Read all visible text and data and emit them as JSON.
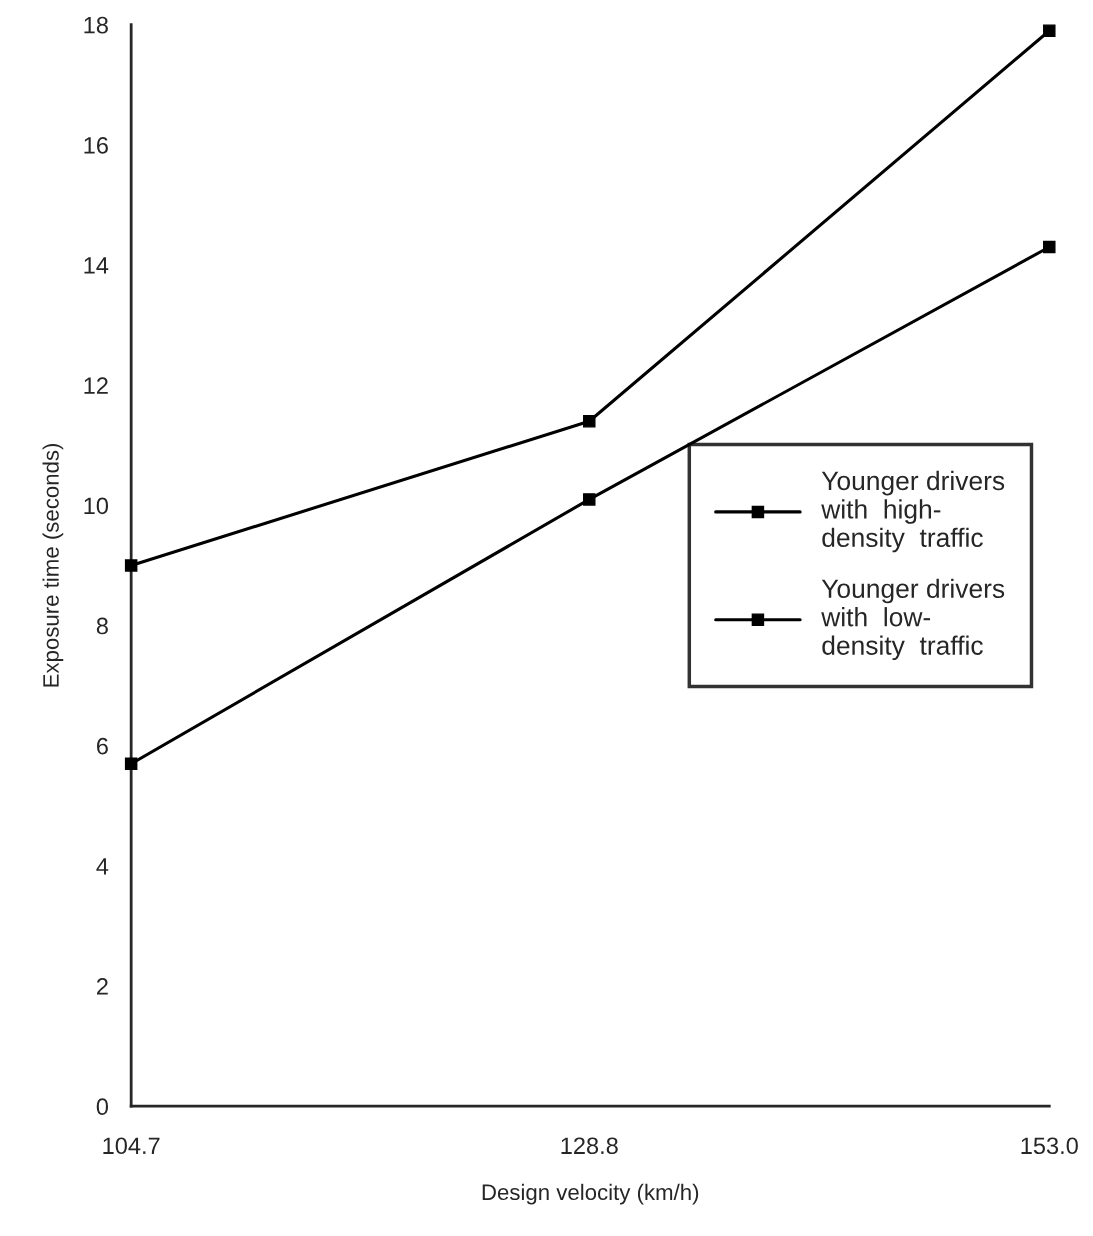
{
  "chart_data": {
    "type": "line",
    "xlabel": "Design velocity (km/h)",
    "ylabel": "Exposure time (seconds)",
    "x": [
      104.7,
      128.8,
      153.0
    ],
    "series": [
      {
        "name": "Younger drivers\nwith  high-\ndensity  traffic",
        "color": "#000000",
        "values": [
          9.0,
          11.4,
          17.9
        ]
      },
      {
        "name": "Younger drivers\nwith  low-\ndensity  traffic",
        "color": "#000000",
        "values": [
          5.7,
          10.1,
          14.3
        ]
      }
    ],
    "xlim": [
      104.7,
      153.0
    ],
    "xticks": [
      104.7,
      128.8,
      {
        "value": 153.0,
        "label": "153.0"
      }
    ],
    "ylim": [
      0,
      18
    ],
    "yticks": [
      0,
      2,
      4,
      6,
      8,
      10,
      12,
      14,
      16,
      18
    ],
    "grid": false,
    "legend": "center right",
    "marker": "square",
    "line_style": "solid"
  }
}
